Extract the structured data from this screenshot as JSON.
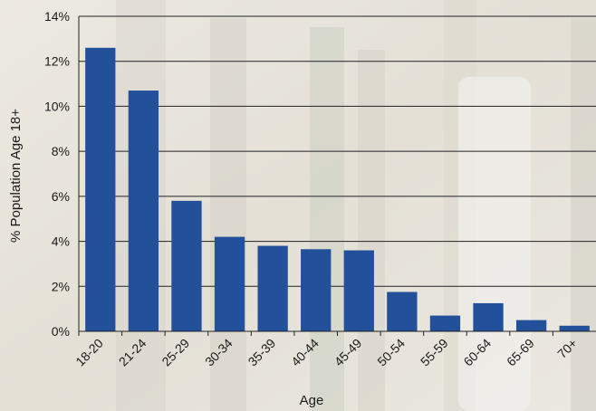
{
  "chart_data": {
    "type": "bar",
    "categories": [
      "18-20",
      "21-24",
      "25-29",
      "30-34",
      "35-39",
      "40-44",
      "45-49",
      "50-54",
      "55-59",
      "60-64",
      "65-69",
      "70+"
    ],
    "values": [
      12.6,
      10.7,
      5.8,
      4.2,
      3.8,
      3.65,
      3.6,
      1.75,
      0.7,
      1.25,
      0.5,
      0.25
    ],
    "value_unit": "%",
    "title": "",
    "xlabel": "Age",
    "ylabel": "% Population Age 18+",
    "ylim": [
      0,
      14
    ],
    "yticks": [
      "0%",
      "2%",
      "4%",
      "6%",
      "8%",
      "10%",
      "12%",
      "14%"
    ],
    "grid": true,
    "legend": "none",
    "bar_color": "#23509b",
    "grid_color": "#222222"
  }
}
